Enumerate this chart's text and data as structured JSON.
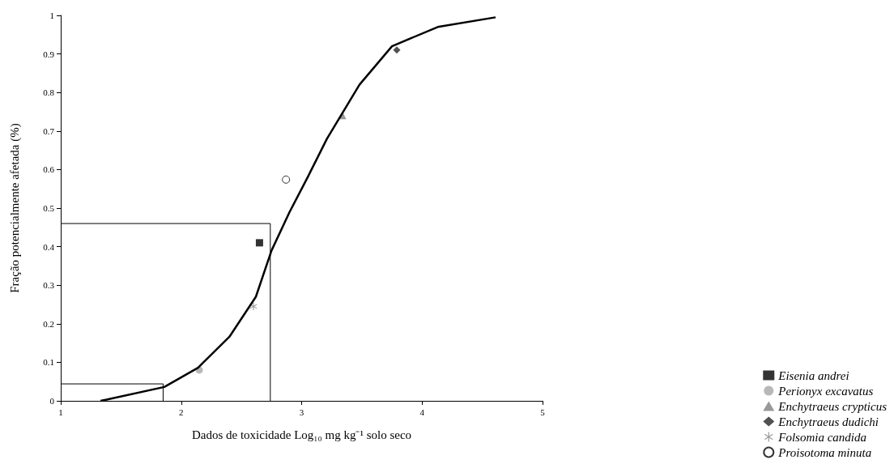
{
  "chart_data": {
    "type": "scatter",
    "xlabel": "Dados de toxicidade Log₁₀ mg kg⁻¹ solo seco",
    "ylabel": "Fração potencialmente afetada (%)",
    "xlim": [
      1,
      5
    ],
    "xticks": [
      1,
      2,
      3,
      4,
      5
    ],
    "ylim": [
      0,
      1
    ],
    "yticks": [
      0,
      0.1,
      0.2,
      0.3,
      0.4,
      0.5,
      0.6,
      0.7,
      0.8,
      0.9,
      1
    ],
    "grid": false,
    "legend": "bottom right",
    "series": [
      {
        "name": "Eisenia andrei",
        "color": "#000000",
        "marker": "square",
        "x": [
          2.65
        ],
        "values": [
          0.41
        ]
      },
      {
        "name": "Perionyx excavatus",
        "color": "#a6a6a6",
        "marker": "circle",
        "x": [
          2.15
        ],
        "values": [
          0.08
        ]
      },
      {
        "name": "Enchytraeus crypticus",
        "color": "#808080",
        "marker": "triangle",
        "x": [
          3.34
        ],
        "values": [
          0.74
        ]
      },
      {
        "name": "Enchytraeus dudichi",
        "color": "#262626",
        "marker": "diamond",
        "x": [
          3.79
        ],
        "values": [
          0.91
        ]
      },
      {
        "name": "Folsomia candida",
        "color": "#808080",
        "marker": "cross",
        "x": [
          2.6
        ],
        "values": [
          0.245
        ]
      },
      {
        "name": "Proisotoma minuta",
        "color": "#ffffff",
        "marker": "circle",
        "x": [
          2.87
        ],
        "values": [
          0.574
        ]
      },
      {
        "type": "line",
        "color": "#000000",
        "marker": "none",
        "x": [
          1.33,
          1.38,
          1.86,
          2.14,
          2.4,
          2.62,
          2.75,
          2.9,
          3.05,
          3.21,
          3.48,
          3.75,
          4.13,
          4.61
        ],
        "values": [
          0,
          0.003,
          0.036,
          0.086,
          0.166,
          0.27,
          0.39,
          0.49,
          0.58,
          0.68,
          0.82,
          0.92,
          0.97,
          0.995
        ]
      },
      {
        "type": "line",
        "color": "#000000",
        "marker": "none",
        "x": [
          1,
          2.74,
          2.74
        ],
        "values": [
          0.46,
          0.46,
          0
        ]
      },
      {
        "type": "line",
        "color": "#000000",
        "marker": "none",
        "x": [
          1,
          1.85,
          1.85
        ],
        "values": [
          0.044,
          0.044,
          0
        ]
      }
    ]
  }
}
